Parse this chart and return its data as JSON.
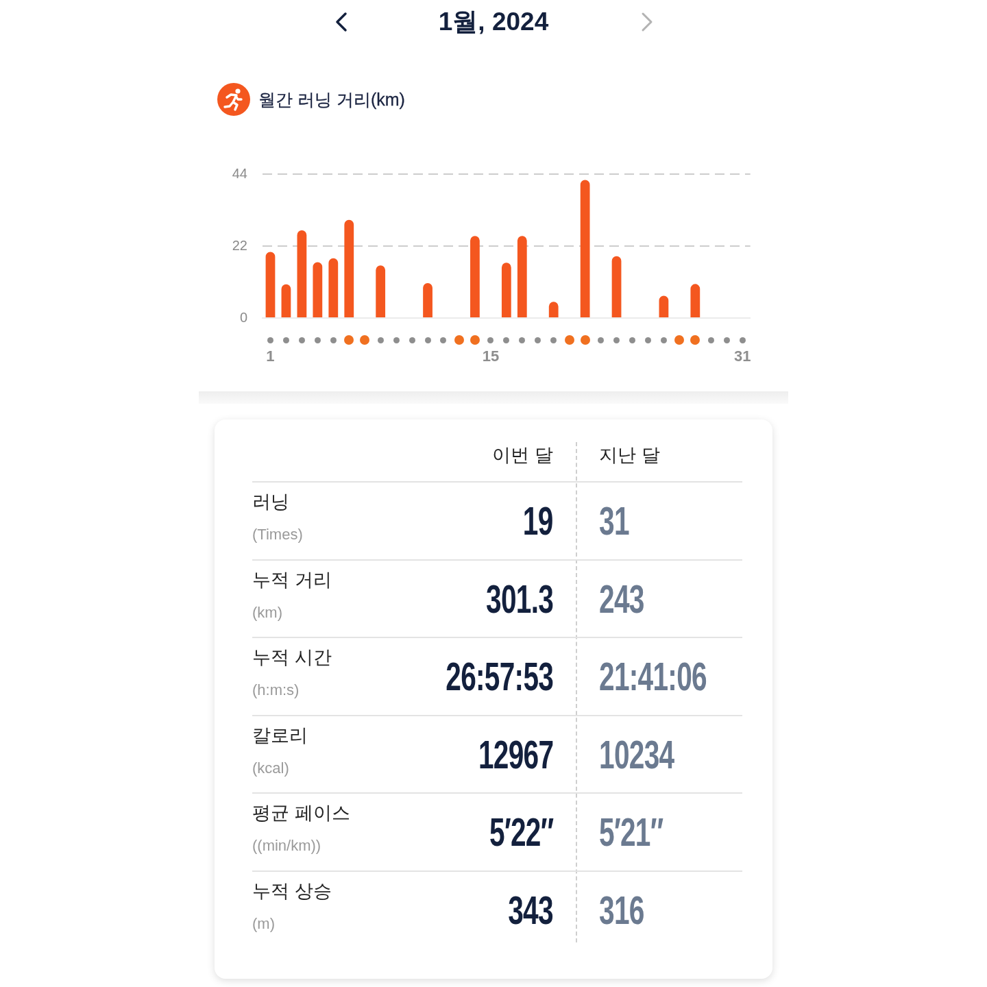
{
  "chart_data": [
    {
      "type": "bar",
      "title": "1월, 2024",
      "subtitle": "월간 러닝 거리(km)",
      "categories": [
        "1",
        null,
        null,
        null,
        null,
        null,
        null,
        null,
        null,
        null,
        null,
        null,
        null,
        null,
        "15",
        null,
        null,
        null,
        null,
        null,
        null,
        null,
        null,
        null,
        null,
        null,
        null,
        null,
        null,
        null,
        "31"
      ],
      "values": [
        20.2,
        10.3,
        26.8,
        17.1,
        18.3,
        30.0,
        null,
        16.1,
        null,
        null,
        10.7,
        null,
        null,
        25.1,
        null,
        16.9,
        25.1,
        null,
        5.0,
        null,
        42.2,
        null,
        18.9,
        null,
        null,
        6.8,
        null,
        10.4,
        null,
        null,
        null
      ],
      "color": "#f4571f",
      "ylim": [
        0,
        44
      ],
      "yticks": [
        0,
        22,
        44
      ],
      "grid": "y"
    },
    {
      "type": "other",
      "annotations": [
        "이번 달",
        "지난 달",
        "러닝",
        "(Times)",
        "19",
        "31",
        "누적 거리",
        "(km)",
        "301.3",
        "243",
        "누적 시간",
        "(h:m:s)",
        "26:57:53",
        "21:41:06",
        "칼로리",
        "(kcal)",
        "12967",
        "10234",
        "평균 페이스",
        "((min/km))",
        "5′22″",
        "5′21″",
        "누적 상승",
        "(m)",
        "343",
        "316"
      ]
    }
  ]
}
